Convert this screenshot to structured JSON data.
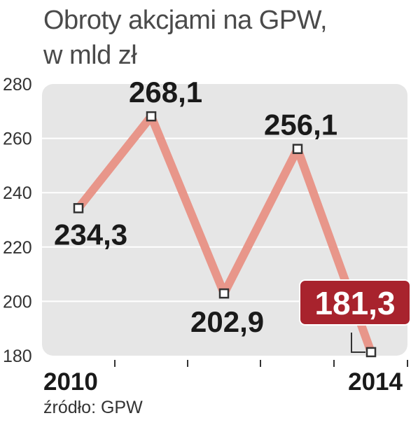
{
  "title_lines": [
    "Obroty akcjami na GPW,",
    "w mld zł"
  ],
  "source": "źródło: GPW",
  "colors": {
    "panel": "#e6e6e6",
    "grid": "#ffffff",
    "line": "#e8968a",
    "marker_fill": "#ffffff",
    "marker_stroke": "#333333",
    "highlight_box": "#a8232d"
  },
  "chart_data": {
    "type": "line",
    "x": [
      2010,
      2011,
      2012,
      2013,
      2014
    ],
    "x_tick_labels": [
      "2010",
      "",
      "",
      "",
      "2014"
    ],
    "values": [
      234.3,
      268.1,
      202.9,
      256.1,
      181.3
    ],
    "value_labels": [
      "234,3",
      "268,1",
      "202,9",
      "256,1",
      "181,3"
    ],
    "highlight_index": 4,
    "y_ticks": [
      180,
      200,
      220,
      240,
      260,
      280
    ],
    "ylim": [
      180,
      280
    ],
    "grid": true
  }
}
